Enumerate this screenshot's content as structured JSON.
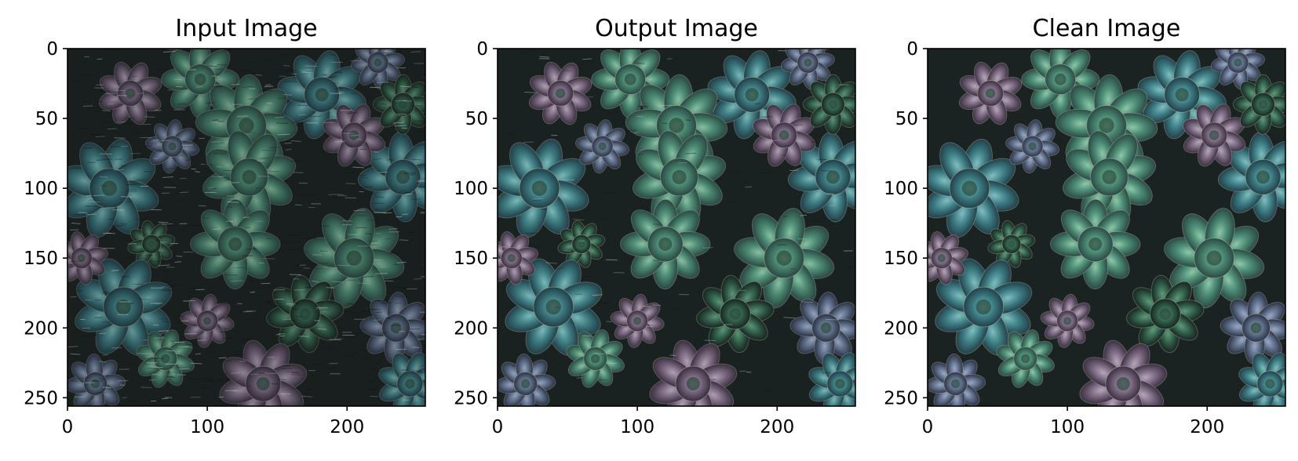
{
  "chart_data": [
    {
      "type": "image",
      "title": "Input Image",
      "content": "succulent-rosettes-noisy",
      "image_size": [
        256,
        256
      ],
      "xlim": [
        0,
        256
      ],
      "ylim": [
        256,
        0
      ],
      "xticks": [
        0,
        100,
        200
      ],
      "yticks": [
        0,
        50,
        100,
        150,
        200,
        250
      ],
      "xtick_labels": [
        "0",
        "100",
        "200"
      ],
      "ytick_labels": [
        "0",
        "50",
        "100",
        "150",
        "200",
        "250"
      ],
      "noise_level": 0.7
    },
    {
      "type": "image",
      "title": "Output Image",
      "content": "succulent-rosettes-restored",
      "image_size": [
        256,
        256
      ],
      "xlim": [
        0,
        256
      ],
      "ylim": [
        256,
        0
      ],
      "xticks": [
        0,
        100,
        200
      ],
      "yticks": [
        0,
        50,
        100,
        150,
        200,
        250
      ],
      "xtick_labels": [
        "0",
        "100",
        "200"
      ],
      "ytick_labels": [
        "0",
        "50",
        "100",
        "150",
        "200",
        "250"
      ],
      "noise_level": 0.12
    },
    {
      "type": "image",
      "title": "Clean Image",
      "content": "succulent-rosettes-clean",
      "image_size": [
        256,
        256
      ],
      "xlim": [
        0,
        256
      ],
      "ylim": [
        256,
        0
      ],
      "xticks": [
        0,
        100,
        200
      ],
      "yticks": [
        0,
        50,
        100,
        150,
        200,
        250
      ],
      "xtick_labels": [
        "0",
        "100",
        "200"
      ],
      "ytick_labels": [
        "0",
        "50",
        "100",
        "150",
        "200",
        "250"
      ],
      "noise_level": 0
    }
  ],
  "colors": {
    "background": "#ffffff",
    "image_dark": "#1b2322",
    "leaf_green": "#4f8f78",
    "leaf_teal": "#3f7f86",
    "leaf_blue_gray": "#5f6f8a",
    "leaf_mauve": "#7a6880",
    "axis": "#000000"
  }
}
